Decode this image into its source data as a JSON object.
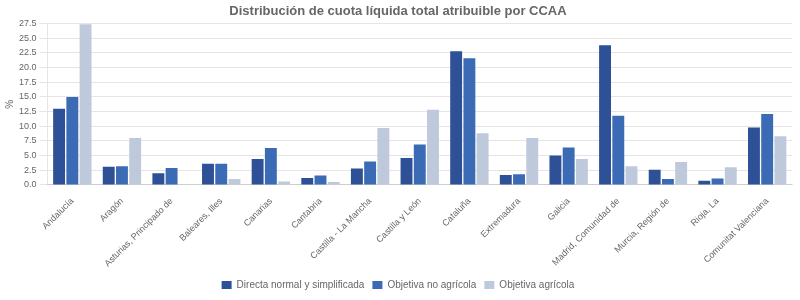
{
  "chart_data": {
    "type": "bar",
    "title": "Distribución de cuota líquida total atribuible por CCAA",
    "y_label": "%",
    "categories": [
      "Andalucía",
      "Aragón",
      "Asturias, Principado de",
      "Baleares, Illes",
      "Canarias",
      "Cantabria",
      "Castilla - La Mancha",
      "Castilla y León",
      "Cataluña",
      "Extremadura",
      "Galicia",
      "Madrid, Comunidad de",
      "Murcia, Región de",
      "Rioja, La",
      "Comunitat Valenciana"
    ],
    "series": [
      {
        "name": "Directa normal y simplificada",
        "color": "#2E5096",
        "values": [
          13.0,
          3.1,
          2.0,
          3.6,
          4.4,
          1.2,
          2.8,
          4.6,
          22.8,
          1.7,
          5.0,
          23.8,
          2.6,
          0.7,
          9.8
        ]
      },
      {
        "name": "Objetiva no agrícola",
        "color": "#3B6BB5",
        "values": [
          15.0,
          3.2,
          2.9,
          3.6,
          6.3,
          1.6,
          4.0,
          6.9,
          21.6,
          1.8,
          6.4,
          11.8,
          1.0,
          1.1,
          12.1
        ]
      },
      {
        "name": "Objetiva agrícola",
        "color": "#BFC9DC",
        "values": [
          27.4,
          8.0,
          0.0,
          1.0,
          0.6,
          0.5,
          9.7,
          12.8,
          8.8,
          8.0,
          4.4,
          3.2,
          3.9,
          3.0,
          8.3
        ]
      }
    ],
    "ylim": [
      0,
      27.5
    ],
    "yticks": [
      {
        "value": 0,
        "label": "0.0"
      },
      2.5,
      {
        "value": 5,
        "label": "5.0"
      },
      7.5,
      {
        "value": 10,
        "label": "10.0"
      },
      12.5,
      {
        "value": 15,
        "label": "15.0"
      },
      17.5,
      {
        "value": 20,
        "label": "20.0"
      },
      22.5,
      {
        "value": 25,
        "label": "25.0"
      },
      27.5
    ],
    "grid": true,
    "legend": "bottom"
  }
}
